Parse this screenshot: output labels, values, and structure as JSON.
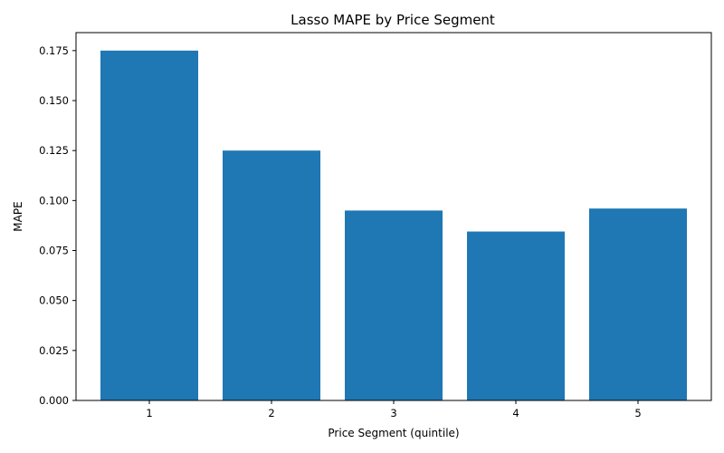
{
  "chart_data": {
    "type": "bar",
    "title": "Lasso MAPE by Price Segment",
    "xlabel": "Price Segment (quintile)",
    "ylabel": "MAPE",
    "categories": [
      "1",
      "2",
      "3",
      "4",
      "5"
    ],
    "values": [
      0.175,
      0.125,
      0.095,
      0.0845,
      0.096
    ],
    "ylim": [
      0,
      0.184
    ],
    "yticks": [
      0.0,
      0.025,
      0.05,
      0.075,
      0.1,
      0.125,
      0.15,
      0.175
    ],
    "ytick_labels": [
      "0.000",
      "0.025",
      "0.050",
      "0.075",
      "0.100",
      "0.125",
      "0.150",
      "0.175"
    ],
    "bar_color": "#1f77b4",
    "grid": false,
    "legend": "none"
  }
}
